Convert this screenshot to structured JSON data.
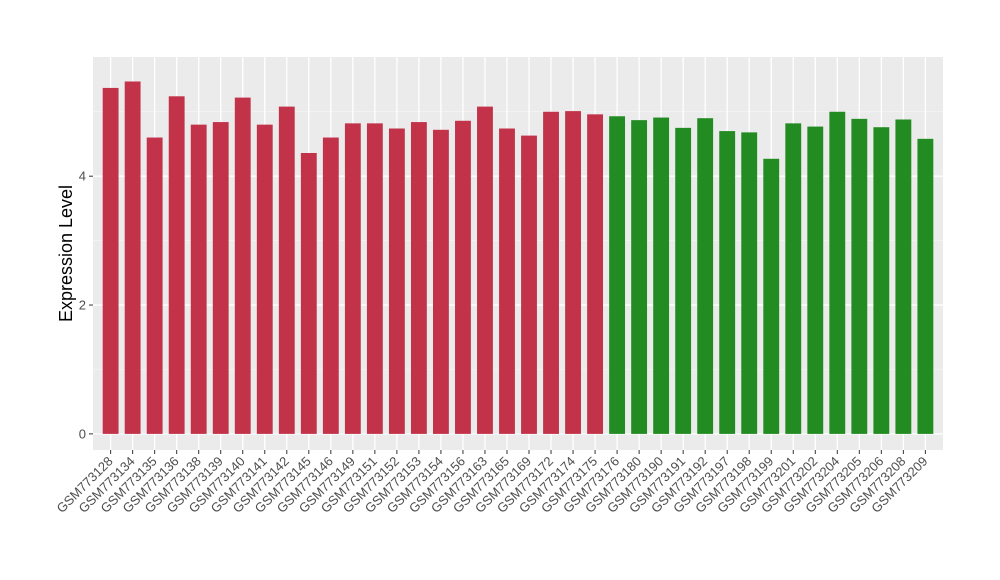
{
  "chart_data": {
    "type": "bar",
    "ylabel": "Expression Level",
    "xlabel": "",
    "ylim": [
      -0.25,
      5.85
    ],
    "yticks": [
      0,
      2,
      4
    ],
    "grid": true,
    "legend": "none",
    "panel_color": "#ebebeb",
    "categories": [
      "GSM773128",
      "GSM773134",
      "GSM773135",
      "GSM773136",
      "GSM773138",
      "GSM773139",
      "GSM773140",
      "GSM773141",
      "GSM773142",
      "GSM773145",
      "GSM773146",
      "GSM773149",
      "GSM773151",
      "GSM773152",
      "GSM773153",
      "GSM773154",
      "GSM773156",
      "GSM773163",
      "GSM773165",
      "GSM773169",
      "GSM773172",
      "GSM773174",
      "GSM773175",
      "GSM773176",
      "GSM773180",
      "GSM773190",
      "GSM773191",
      "GSM773192",
      "GSM773197",
      "GSM773198",
      "GSM773199",
      "GSM773201",
      "GSM773202",
      "GSM773204",
      "GSM773205",
      "GSM773206",
      "GSM773208",
      "GSM773209"
    ],
    "values": [
      5.37,
      5.47,
      4.6,
      5.24,
      4.8,
      4.84,
      5.22,
      4.8,
      5.08,
      4.36,
      4.6,
      4.82,
      4.82,
      4.74,
      4.84,
      4.72,
      4.86,
      5.08,
      4.74,
      4.63,
      5.0,
      5.01,
      4.96,
      4.93,
      4.87,
      4.91,
      4.75,
      4.9,
      4.7,
      4.68,
      4.27,
      4.82,
      4.77,
      5.0,
      4.89,
      4.76,
      4.88,
      4.58
    ],
    "groups": [
      "a",
      "a",
      "a",
      "a",
      "a",
      "a",
      "a",
      "a",
      "a",
      "a",
      "a",
      "a",
      "a",
      "a",
      "a",
      "a",
      "a",
      "a",
      "a",
      "a",
      "a",
      "a",
      "a",
      "b",
      "b",
      "b",
      "b",
      "b",
      "b",
      "b",
      "b",
      "b",
      "b",
      "b",
      "b",
      "b",
      "b",
      "b"
    ],
    "colors": {
      "a": "#c2334a",
      "b": "#228b22"
    }
  }
}
